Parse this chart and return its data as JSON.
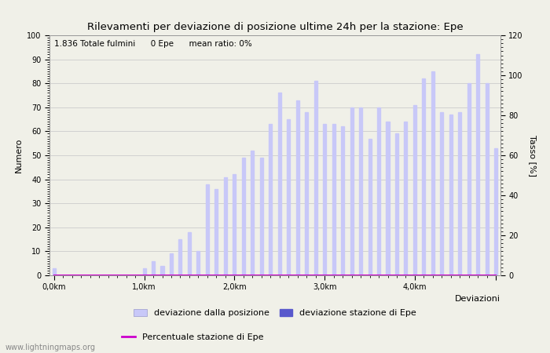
{
  "title": "Rilevamenti per deviazione di posizione ultime 24h per la stazione: Epe",
  "annotation": "1.836 Totale fulmini      0 Epe      mean ratio: 0%",
  "xlabel": "Deviazioni",
  "ylabel_left": "Numero",
  "ylabel_right": "Tasso [%]",
  "watermark": "www.lightningmaps.org",
  "bar_values": [
    3,
    0,
    0,
    0,
    0,
    0,
    0,
    0,
    0,
    0,
    3,
    6,
    4,
    9,
    15,
    18,
    10,
    38,
    36,
    41,
    42,
    49,
    52,
    49,
    63,
    76,
    65,
    73,
    68,
    81,
    63,
    63,
    62,
    70,
    70,
    57,
    70,
    64,
    59,
    64,
    71,
    82,
    85,
    68,
    67,
    68,
    80,
    92,
    80,
    53
  ],
  "bar_color": "#c8c8f8",
  "bar_color_epe": "#5858cc",
  "bar_width": 0.35,
  "x_tick_positions": [
    0,
    10,
    20,
    30,
    40,
    49
  ],
  "x_tick_labels": [
    "0,0km",
    "1,0km",
    "2,0km",
    "3,0km",
    "4,0km",
    ""
  ],
  "ylim_left": [
    0,
    100
  ],
  "ylim_right": [
    0,
    120
  ],
  "yticks_left": [
    0,
    10,
    20,
    30,
    40,
    50,
    60,
    70,
    80,
    90,
    100
  ],
  "yticks_right": [
    0,
    20,
    40,
    60,
    80,
    100,
    120
  ],
  "grid_color": "#cccccc",
  "bg_color": "#f0f0e8",
  "legend_label_bar": "deviazione dalla posizione",
  "legend_label_epe": "deviazione stazione di Epe",
  "legend_label_line": "Percentuale stazione di Epe",
  "line_color": "#cc00cc",
  "epe_values": [
    0,
    0,
    0,
    0,
    0,
    0,
    0,
    0,
    0,
    0,
    0,
    0,
    0,
    0,
    0,
    0,
    0,
    0,
    0,
    0,
    0,
    0,
    0,
    0,
    0,
    0,
    0,
    0,
    0,
    0,
    0,
    0,
    0,
    0,
    0,
    0,
    0,
    0,
    0,
    0,
    0,
    0,
    0,
    0,
    0,
    0,
    0,
    0,
    0,
    0
  ],
  "figsize": [
    7.0,
    4.5
  ],
  "dpi": 100
}
